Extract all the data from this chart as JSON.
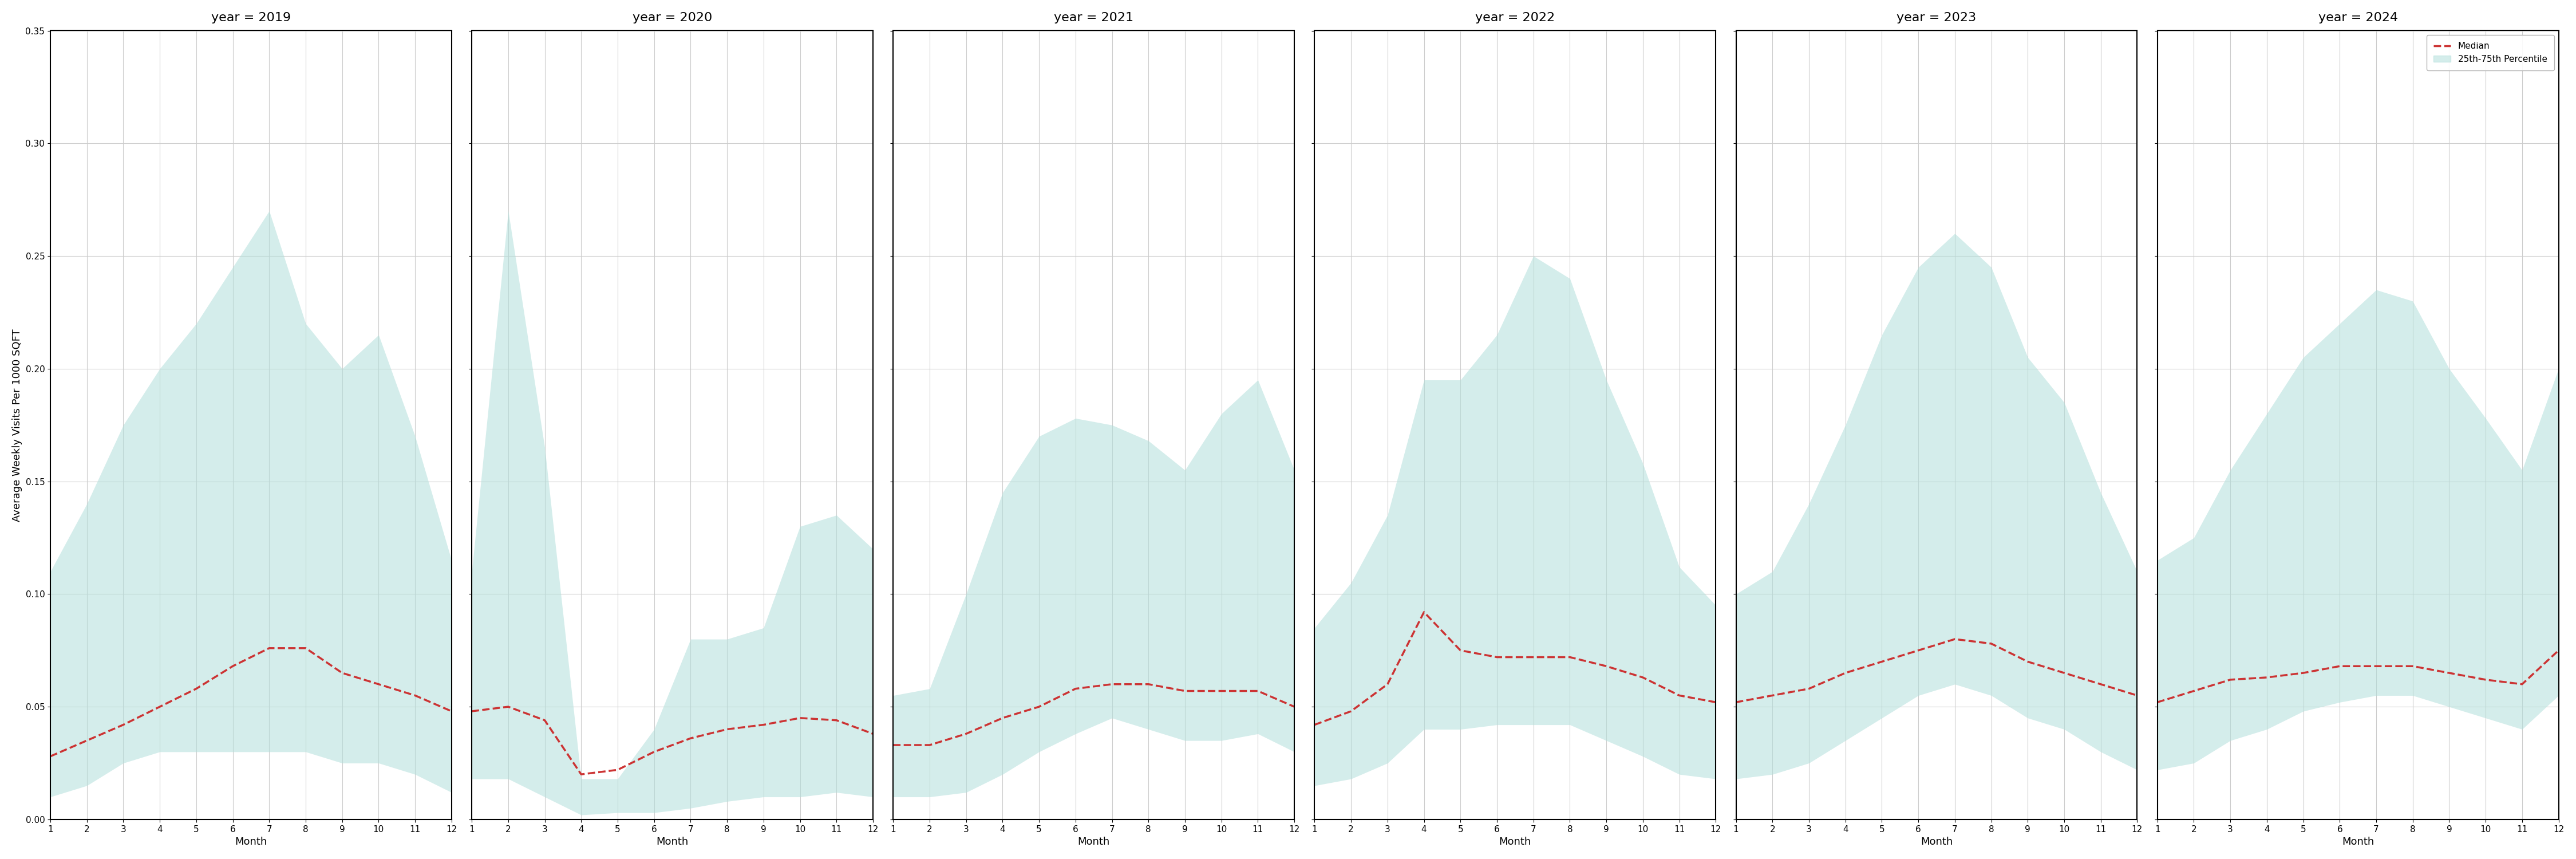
{
  "years": [
    2019,
    2020,
    2021,
    2022,
    2023,
    2024
  ],
  "months": [
    1,
    2,
    3,
    4,
    5,
    6,
    7,
    8,
    9,
    10,
    11,
    12
  ],
  "median": {
    "2019": [
      0.028,
      0.035,
      0.042,
      0.05,
      0.058,
      0.068,
      0.076,
      0.076,
      0.065,
      0.06,
      0.055,
      0.048
    ],
    "2020": [
      0.048,
      0.05,
      0.044,
      0.02,
      0.022,
      0.03,
      0.036,
      0.04,
      0.042,
      0.045,
      0.044,
      0.038
    ],
    "2021": [
      0.033,
      0.033,
      0.038,
      0.045,
      0.05,
      0.058,
      0.06,
      0.06,
      0.057,
      0.057,
      0.057,
      0.05
    ],
    "2022": [
      0.042,
      0.048,
      0.06,
      0.092,
      0.075,
      0.072,
      0.072,
      0.072,
      0.068,
      0.063,
      0.055,
      0.052
    ],
    "2023": [
      0.052,
      0.055,
      0.058,
      0.065,
      0.07,
      0.075,
      0.08,
      0.078,
      0.07,
      0.065,
      0.06,
      0.055
    ],
    "2024": [
      0.052,
      0.057,
      0.062,
      0.063,
      0.065,
      0.068,
      0.068,
      0.068,
      0.065,
      0.062,
      0.06,
      0.075
    ]
  },
  "p25": {
    "2019": [
      0.01,
      0.015,
      0.025,
      0.03,
      0.03,
      0.03,
      0.03,
      0.03,
      0.025,
      0.025,
      0.02,
      0.012
    ],
    "2020": [
      0.018,
      0.018,
      0.01,
      0.002,
      0.003,
      0.003,
      0.005,
      0.008,
      0.01,
      0.01,
      0.012,
      0.01
    ],
    "2021": [
      0.01,
      0.01,
      0.012,
      0.02,
      0.03,
      0.038,
      0.045,
      0.04,
      0.035,
      0.035,
      0.038,
      0.03
    ],
    "2022": [
      0.015,
      0.018,
      0.025,
      0.04,
      0.04,
      0.042,
      0.042,
      0.042,
      0.035,
      0.028,
      0.02,
      0.018
    ],
    "2023": [
      0.018,
      0.02,
      0.025,
      0.035,
      0.045,
      0.055,
      0.06,
      0.055,
      0.045,
      0.04,
      0.03,
      0.022
    ],
    "2024": [
      0.022,
      0.025,
      0.035,
      0.04,
      0.048,
      0.052,
      0.055,
      0.055,
      0.05,
      0.045,
      0.04,
      0.055
    ]
  },
  "p75": {
    "2019": [
      0.11,
      0.14,
      0.175,
      0.2,
      0.22,
      0.245,
      0.27,
      0.22,
      0.2,
      0.215,
      0.17,
      0.115
    ],
    "2020": [
      0.11,
      0.27,
      0.165,
      0.018,
      0.018,
      0.04,
      0.08,
      0.08,
      0.085,
      0.13,
      0.135,
      0.12
    ],
    "2021": [
      0.055,
      0.058,
      0.1,
      0.145,
      0.17,
      0.178,
      0.175,
      0.168,
      0.155,
      0.18,
      0.195,
      0.155
    ],
    "2022": [
      0.085,
      0.105,
      0.135,
      0.195,
      0.195,
      0.215,
      0.25,
      0.24,
      0.195,
      0.158,
      0.112,
      0.095
    ],
    "2023": [
      0.1,
      0.11,
      0.14,
      0.175,
      0.215,
      0.245,
      0.26,
      0.245,
      0.205,
      0.185,
      0.145,
      0.11
    ],
    "2024": [
      0.115,
      0.125,
      0.155,
      0.18,
      0.205,
      0.22,
      0.235,
      0.23,
      0.2,
      0.178,
      0.155,
      0.2
    ]
  },
  "ylim": [
    0,
    0.35
  ],
  "yticks": [
    0.0,
    0.05,
    0.1,
    0.15,
    0.2,
    0.25,
    0.3,
    0.35
  ],
  "ylabel": "Average Weekly Visits Per 1000 SQFT",
  "xlabel": "Month",
  "fill_color": "#b2dfdb",
  "fill_alpha": 0.55,
  "median_color": "#cc3333",
  "median_linestyle": "--",
  "median_linewidth": 2.5,
  "grid_color": "#cccccc",
  "background_color": "#ffffff",
  "legend_median_label": "Median",
  "legend_fill_label": "25th-75th Percentile",
  "title_fontsize": 16,
  "label_fontsize": 13,
  "tick_fontsize": 11
}
